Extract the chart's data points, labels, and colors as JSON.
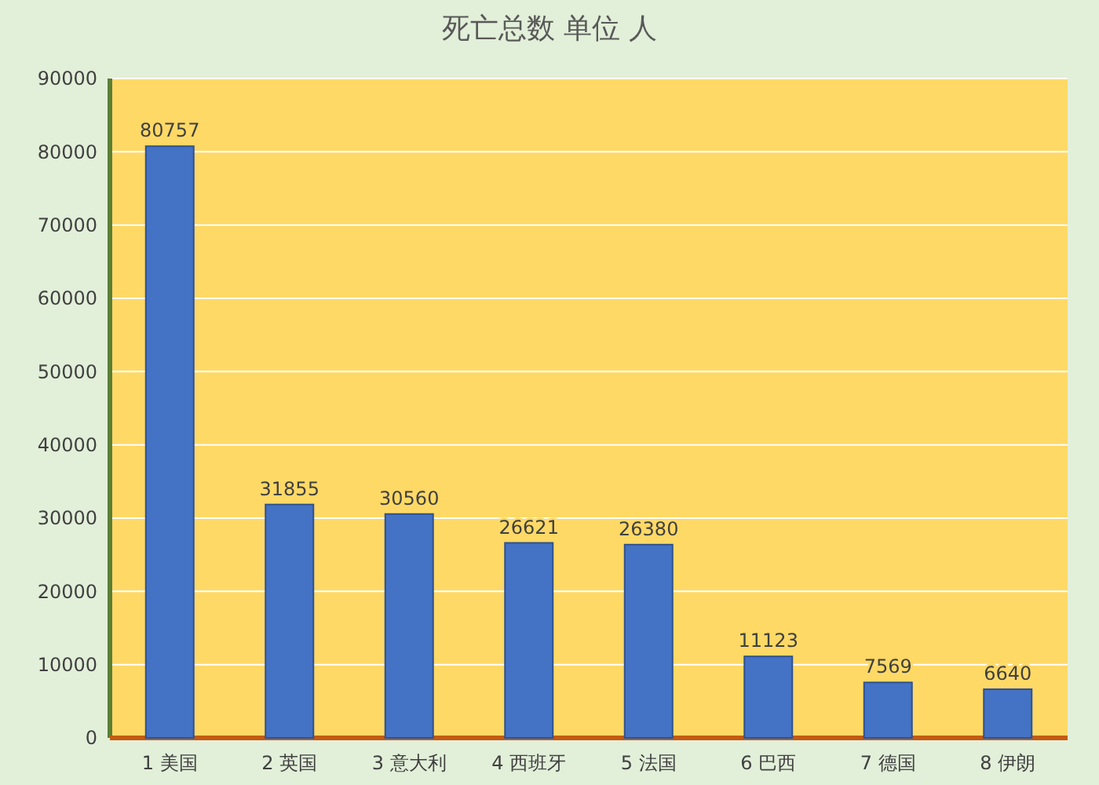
{
  "chart_data": {
    "type": "bar",
    "title": "死亡总数 单位 人",
    "categories": [
      "1 美国",
      "2 英国",
      "3 意大利",
      "4 西班牙",
      "5 法国",
      "6 巴西",
      "7 德国",
      "8 伊朗"
    ],
    "values": [
      80757,
      31855,
      30560,
      26621,
      26380,
      11123,
      7569,
      6640
    ],
    "color": "#4472c4",
    "ylim": [
      0,
      90000
    ],
    "yticks": [
      0,
      10000,
      20000,
      30000,
      40000,
      50000,
      60000,
      70000,
      80000,
      90000
    ],
    "grid": "y",
    "data_labels": true
  }
}
